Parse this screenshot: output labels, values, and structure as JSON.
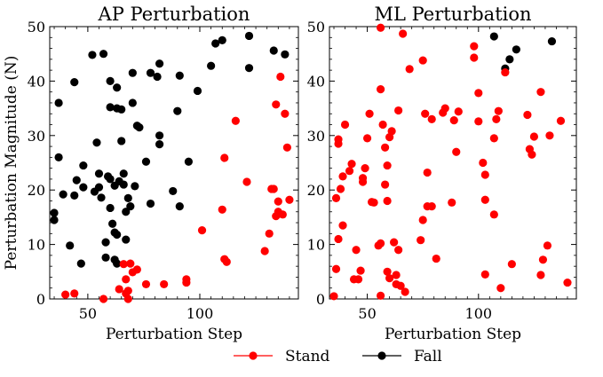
{
  "chart_data": [
    {
      "type": "scatter",
      "title": "AP Perturbation",
      "xlabel": "Perturbation Step",
      "ylabel": "Perturbation Magnitude (N)",
      "xlim": [
        33,
        144
      ],
      "ylim": [
        0,
        50
      ],
      "xticks": [
        50,
        100
      ],
      "xtick_labels": [
        "50",
        "100"
      ],
      "yticks": [
        0,
        10,
        20,
        30,
        40,
        50
      ],
      "ytick_labels": [
        "0",
        "10",
        "20",
        "30",
        "40",
        "50"
      ],
      "series": [
        {
          "name": "Fall",
          "color": "#000000",
          "points": [
            [
              37,
              36
            ],
            [
              37,
              26
            ],
            [
              39,
              19.2
            ],
            [
              35,
              15.8
            ],
            [
              35,
              14.5
            ],
            [
              42,
              9.8
            ],
            [
              44,
              19
            ],
            [
              45,
              21.8
            ],
            [
              44,
              39.8
            ],
            [
              48,
              20.5
            ],
            [
              48,
              24.5
            ],
            [
              47,
              6.5
            ],
            [
              52,
              44.8
            ],
            [
              53,
              19.7
            ],
            [
              54,
              28.7
            ],
            [
              55,
              23
            ],
            [
              55,
              20.5
            ],
            [
              56,
              18.6
            ],
            [
              57,
              45
            ],
            [
              58,
              10.4
            ],
            [
              58,
              7.6
            ],
            [
              59,
              22.5
            ],
            [
              60,
              35.2
            ],
            [
              60,
              22
            ],
            [
              60,
              16.7
            ],
            [
              60,
              40
            ],
            [
              61,
              13.8
            ],
            [
              62,
              20.8
            ],
            [
              62,
              12.2
            ],
            [
              62,
              7.2
            ],
            [
              63,
              11.8
            ],
            [
              63,
              6.5
            ],
            [
              63,
              38.8
            ],
            [
              63,
              35
            ],
            [
              64,
              21.6
            ],
            [
              65,
              34.8
            ],
            [
              65,
              29
            ],
            [
              66,
              23
            ],
            [
              66,
              21
            ],
            [
              67,
              16
            ],
            [
              67,
              10.9
            ],
            [
              68,
              18.5
            ],
            [
              69,
              17
            ],
            [
              70,
              41.5
            ],
            [
              70,
              36
            ],
            [
              71,
              20.7
            ],
            [
              72,
              31.8
            ],
            [
              73,
              31.5
            ],
            [
              76,
              25.2
            ],
            [
              78,
              17.5
            ],
            [
              78,
              41.5
            ],
            [
              81,
              40.8
            ],
            [
              82,
              28.4
            ],
            [
              82,
              30
            ],
            [
              82,
              43.2
            ],
            [
              88,
              19.8
            ],
            [
              90,
              34.5
            ],
            [
              91,
              41
            ],
            [
              91,
              17
            ],
            [
              95,
              25.2
            ],
            [
              99,
              38.2
            ],
            [
              105,
              42.8
            ],
            [
              107,
              46.9
            ],
            [
              110,
              47.5
            ],
            [
              122,
              48.3
            ],
            [
              122,
              42.4
            ],
            [
              133,
              45.6
            ],
            [
              138,
              44.9
            ]
          ]
        },
        {
          "name": "Stand",
          "color": "#ff0000",
          "points": [
            [
              40,
              0.8
            ],
            [
              44,
              1
            ],
            [
              57,
              0
            ],
            [
              64,
              1.8
            ],
            [
              66,
              6.4
            ],
            [
              67,
              3.6
            ],
            [
              67,
              1
            ],
            [
              68,
              0
            ],
            [
              68,
              1.5
            ],
            [
              69,
              6.5
            ],
            [
              70,
              4.9
            ],
            [
              72,
              5.4
            ],
            [
              76,
              2.7
            ],
            [
              84,
              2.7
            ],
            [
              94,
              3
            ],
            [
              94,
              3.6
            ],
            [
              101,
              12.6
            ],
            [
              110,
              16.4
            ],
            [
              111,
              25.9
            ],
            [
              111,
              7.3
            ],
            [
              112,
              6.8
            ],
            [
              116,
              32.7
            ],
            [
              121,
              21.5
            ],
            [
              129,
              8.8
            ],
            [
              131,
              12
            ],
            [
              132,
              20.2
            ],
            [
              133,
              20.2
            ],
            [
              134,
              15.2
            ],
            [
              134,
              35.7
            ],
            [
              135,
              17.9
            ],
            [
              135,
              16
            ],
            [
              136,
              40.8
            ],
            [
              137,
              15.5
            ],
            [
              138,
              34
            ],
            [
              139,
              27.8
            ],
            [
              140,
              18.2
            ]
          ]
        }
      ]
    },
    {
      "type": "scatter",
      "title": "ML Perturbation",
      "xlabel": "Perturbation Step",
      "ylabel": "",
      "xlim": [
        33,
        144
      ],
      "ylim": [
        0,
        50
      ],
      "xticks": [
        50,
        100
      ],
      "xtick_labels": [
        "50",
        "100"
      ],
      "yticks": [
        0,
        10,
        20,
        30,
        40,
        50
      ],
      "ytick_labels": [
        "0",
        "10",
        "20",
        "30",
        "40",
        "50"
      ],
      "series": [
        {
          "name": "Fall",
          "color": "#000000",
          "points": [
            [
              107,
              48.2
            ],
            [
              112,
              42.3
            ],
            [
              114,
              44
            ],
            [
              117,
              45.8
            ],
            [
              133,
              47.3
            ]
          ]
        },
        {
          "name": "Stand",
          "color": "#ff0000",
          "points": [
            [
              35,
              0.5
            ],
            [
              36,
              5.5
            ],
            [
              37,
              11
            ],
            [
              36,
              18.5
            ],
            [
              37,
              29.3
            ],
            [
              37,
              28.5
            ],
            [
              38,
              20.2
            ],
            [
              39,
              22.5
            ],
            [
              39,
              13.5
            ],
            [
              40,
              32
            ],
            [
              42,
              23.5
            ],
            [
              43,
              24.8
            ],
            [
              44,
              3.6
            ],
            [
              45,
              9
            ],
            [
              46,
              3.6
            ],
            [
              47,
              5.2
            ],
            [
              48,
              21.5
            ],
            [
              48,
              22.2
            ],
            [
              49,
              24
            ],
            [
              50,
              29.5
            ],
            [
              51,
              34
            ],
            [
              52,
              17.8
            ],
            [
              53,
              17.7
            ],
            [
              55,
              9.8
            ],
            [
              56,
              10.2
            ],
            [
              56,
              0.6
            ],
            [
              56,
              38.5
            ],
            [
              56,
              49.8
            ],
            [
              57,
              32
            ],
            [
              58,
              27.8
            ],
            [
              58,
              21
            ],
            [
              59,
              24.5
            ],
            [
              59,
              5
            ],
            [
              59,
              18
            ],
            [
              60,
              3.8
            ],
            [
              60,
              29.7
            ],
            [
              61,
              30.8
            ],
            [
              62,
              10.4
            ],
            [
              63,
              2.7
            ],
            [
              63,
              4.4
            ],
            [
              64,
              9
            ],
            [
              64,
              34.6
            ],
            [
              65,
              2.4
            ],
            [
              66,
              48.7
            ],
            [
              67,
              1.3
            ],
            [
              69,
              42.2
            ],
            [
              74,
              10.8
            ],
            [
              75,
              14.5
            ],
            [
              75,
              43.8
            ],
            [
              76,
              34
            ],
            [
              77,
              23.2
            ],
            [
              77,
              17
            ],
            [
              79,
              17
            ],
            [
              79,
              33
            ],
            [
              81,
              7.4
            ],
            [
              84,
              34.2
            ],
            [
              85,
              35
            ],
            [
              88,
              17.7
            ],
            [
              89,
              32.8
            ],
            [
              90,
              27
            ],
            [
              91,
              34.4
            ],
            [
              98,
              46.4
            ],
            [
              98,
              44.3
            ],
            [
              100,
              37.8
            ],
            [
              100,
              32.6
            ],
            [
              102,
              25
            ],
            [
              103,
              22.8
            ],
            [
              103,
              18.2
            ],
            [
              103,
              4.5
            ],
            [
              107,
              15.5
            ],
            [
              107,
              29.5
            ],
            [
              108,
              33
            ],
            [
              109,
              34.5
            ],
            [
              110,
              2
            ],
            [
              112,
              41.6
            ],
            [
              115,
              6.4
            ],
            [
              122,
              33.8
            ],
            [
              123,
              27.5
            ],
            [
              124,
              26.5
            ],
            [
              125,
              29.8
            ],
            [
              128,
              38
            ],
            [
              128,
              4.4
            ],
            [
              129,
              7.2
            ],
            [
              131,
              9.8
            ],
            [
              132,
              30
            ],
            [
              137,
              32.7
            ],
            [
              140,
              3
            ]
          ]
        }
      ]
    }
  ],
  "legend": {
    "placement": "bottom-center",
    "items": [
      {
        "label": "Stand",
        "color": "#ff0000"
      },
      {
        "label": "Fall",
        "color": "#000000"
      }
    ]
  }
}
